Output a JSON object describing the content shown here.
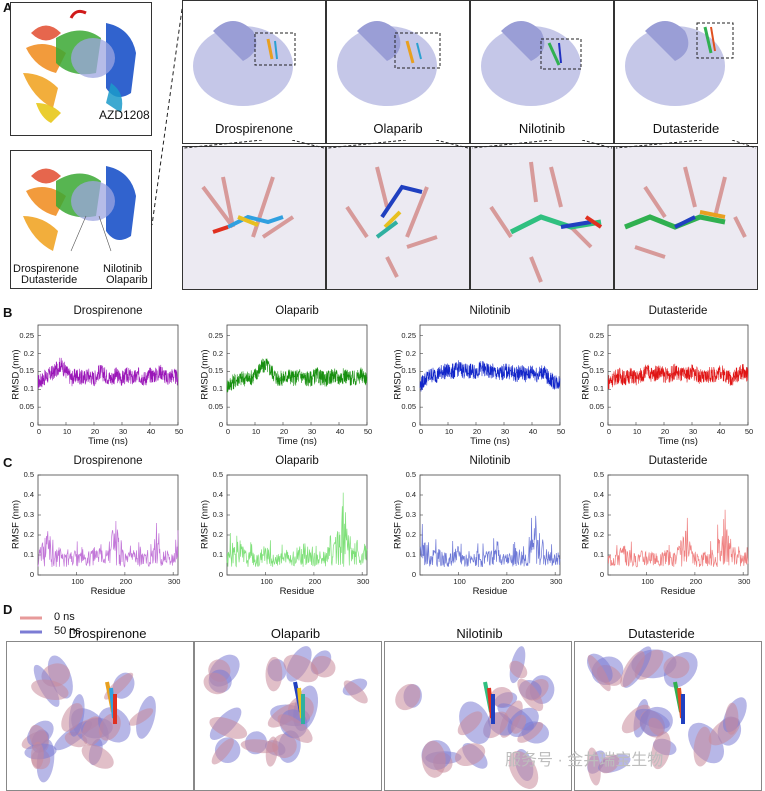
{
  "panels": {
    "A": "A",
    "B": "B",
    "C": "C",
    "D": "D"
  },
  "panelA": {
    "ligand_ref": "AZD1208",
    "overview_labels": {
      "left1": "Drospirenone",
      "left2": "Dutasteride",
      "right1": "Nilotinib",
      "right2": "Olaparib"
    },
    "drugs": [
      "Drospirenone",
      "Olaparib",
      "Nilotinib",
      "Dutasteride"
    ]
  },
  "colors": {
    "drospirenone": "#9a16b8",
    "olaparib": "#17900f",
    "nilotinib": "#1226c9",
    "dutasteride": "#e01515",
    "rmsf_drospirenone": "#c276d8",
    "rmsf_olaparib": "#7fe07a",
    "rmsf_nilotinib": "#6d78d6",
    "rmsf_dutasteride": "#ef8080",
    "legend_0ns": "#e79a9a",
    "legend_50ns": "#7c7cd4",
    "protein": "#a9acd8"
  },
  "panelB": {
    "ylabel": "RMSD (nm)",
    "xlabel": "Time (ns)",
    "yticks": [
      "0",
      "0.05",
      "0.1",
      "0.15",
      "0.2",
      "0.25"
    ],
    "xticks": [
      "0",
      "10",
      "20",
      "30",
      "40",
      "50"
    ]
  },
  "panelC": {
    "ylabel": "RMSF (nm)",
    "xlabel": "Residue",
    "yticks": [
      "0",
      "0.1",
      "0.2",
      "0.3",
      "0.4",
      "0.5"
    ],
    "xticks": [
      "100",
      "200",
      "300"
    ]
  },
  "panelD": {
    "legend": [
      "0 ns",
      "50 ns"
    ]
  },
  "watermark": "服务号 · 金井瑞宝生物",
  "chart_data": [
    {
      "type": "line",
      "title": "Drospirenone",
      "xlabel": "Time (ns)",
      "ylabel": "RMSD (nm)",
      "xlim": [
        0,
        50
      ],
      "ylim": [
        0,
        0.28
      ],
      "series": [
        {
          "name": "Drospirenone",
          "x": [
            0,
            2,
            4,
            6,
            8,
            10,
            12,
            14,
            16,
            18,
            20,
            22,
            24,
            26,
            28,
            30,
            32,
            34,
            36,
            38,
            40,
            42,
            44,
            46,
            48,
            50
          ],
          "values": [
            0.12,
            0.13,
            0.14,
            0.15,
            0.17,
            0.15,
            0.13,
            0.14,
            0.13,
            0.14,
            0.13,
            0.15,
            0.14,
            0.13,
            0.14,
            0.13,
            0.14,
            0.13,
            0.14,
            0.13,
            0.14,
            0.14,
            0.15,
            0.13,
            0.14,
            0.13
          ]
        }
      ]
    },
    {
      "type": "line",
      "title": "Olaparib",
      "xlabel": "Time (ns)",
      "ylabel": "RMSD (nm)",
      "xlim": [
        0,
        50
      ],
      "ylim": [
        0,
        0.28
      ],
      "series": [
        {
          "name": "Olaparib",
          "x": [
            0,
            2,
            4,
            6,
            8,
            10,
            12,
            14,
            16,
            18,
            20,
            22,
            24,
            26,
            28,
            30,
            32,
            34,
            36,
            38,
            40,
            42,
            44,
            46,
            48,
            50
          ],
          "values": [
            0.11,
            0.12,
            0.13,
            0.13,
            0.13,
            0.14,
            0.16,
            0.17,
            0.15,
            0.13,
            0.13,
            0.14,
            0.13,
            0.14,
            0.13,
            0.13,
            0.14,
            0.13,
            0.13,
            0.14,
            0.13,
            0.14,
            0.13,
            0.13,
            0.14,
            0.13
          ]
        }
      ]
    },
    {
      "type": "line",
      "title": "Nilotinib",
      "xlabel": "Time (ns)",
      "ylabel": "RMSD (nm)",
      "xlim": [
        0,
        50
      ],
      "ylim": [
        0,
        0.28
      ],
      "series": [
        {
          "name": "Nilotinib",
          "x": [
            0,
            2,
            4,
            6,
            8,
            10,
            12,
            14,
            16,
            18,
            20,
            22,
            24,
            26,
            28,
            30,
            32,
            34,
            36,
            38,
            40,
            42,
            44,
            46,
            48,
            50
          ],
          "values": [
            0.11,
            0.13,
            0.14,
            0.14,
            0.15,
            0.15,
            0.15,
            0.16,
            0.15,
            0.15,
            0.15,
            0.16,
            0.15,
            0.15,
            0.14,
            0.15,
            0.15,
            0.14,
            0.15,
            0.14,
            0.15,
            0.14,
            0.15,
            0.13,
            0.12,
            0.12
          ]
        }
      ]
    },
    {
      "type": "line",
      "title": "Dutasteride",
      "xlabel": "Time (ns)",
      "ylabel": "RMSD (nm)",
      "xlim": [
        0,
        50
      ],
      "ylim": [
        0,
        0.28
      ],
      "series": [
        {
          "name": "Dutasteride",
          "x": [
            0,
            2,
            4,
            6,
            8,
            10,
            12,
            14,
            16,
            18,
            20,
            22,
            24,
            26,
            28,
            30,
            32,
            34,
            36,
            38,
            40,
            42,
            44,
            46,
            48,
            50
          ],
          "values": [
            0.12,
            0.13,
            0.14,
            0.13,
            0.14,
            0.13,
            0.14,
            0.15,
            0.14,
            0.15,
            0.14,
            0.14,
            0.15,
            0.14,
            0.14,
            0.15,
            0.14,
            0.13,
            0.14,
            0.14,
            0.15,
            0.14,
            0.13,
            0.14,
            0.15,
            0.14
          ]
        }
      ]
    },
    {
      "type": "line",
      "title": "Drospirenone",
      "xlabel": "Residue",
      "ylabel": "RMSF (nm)",
      "xlim": [
        20,
        310
      ],
      "ylim": [
        0,
        0.5
      ],
      "series": [
        {
          "name": "Drospirenone",
          "x": [
            20,
            40,
            60,
            80,
            100,
            120,
            140,
            160,
            180,
            200,
            220,
            240,
            260,
            280,
            300,
            310
          ],
          "values": [
            0.06,
            0.22,
            0.12,
            0.08,
            0.1,
            0.07,
            0.12,
            0.09,
            0.28,
            0.07,
            0.1,
            0.08,
            0.17,
            0.11,
            0.07,
            0.13
          ]
        }
      ]
    },
    {
      "type": "line",
      "title": "Olaparib",
      "xlabel": "Residue",
      "ylabel": "RMSF (nm)",
      "xlim": [
        20,
        310
      ],
      "ylim": [
        0,
        0.5
      ],
      "series": [
        {
          "name": "Olaparib",
          "x": [
            20,
            40,
            60,
            80,
            100,
            120,
            140,
            160,
            180,
            200,
            220,
            240,
            260,
            280,
            300,
            310
          ],
          "values": [
            0.08,
            0.18,
            0.1,
            0.07,
            0.12,
            0.06,
            0.1,
            0.09,
            0.14,
            0.07,
            0.11,
            0.12,
            0.3,
            0.1,
            0.08,
            0.14
          ]
        }
      ]
    },
    {
      "type": "line",
      "title": "Nilotinib",
      "xlabel": "Residue",
      "ylabel": "RMSF (nm)",
      "xlim": [
        20,
        310
      ],
      "ylim": [
        0,
        0.5
      ],
      "series": [
        {
          "name": "Nilotinib",
          "x": [
            20,
            40,
            60,
            80,
            100,
            120,
            140,
            160,
            180,
            200,
            220,
            240,
            260,
            280,
            300,
            310
          ],
          "values": [
            0.2,
            0.13,
            0.1,
            0.07,
            0.12,
            0.06,
            0.09,
            0.08,
            0.15,
            0.06,
            0.12,
            0.09,
            0.24,
            0.11,
            0.07,
            0.11
          ]
        }
      ]
    },
    {
      "type": "line",
      "title": "Dutasteride",
      "xlabel": "Residue",
      "ylabel": "RMSF (nm)",
      "xlim": [
        20,
        310
      ],
      "ylim": [
        0,
        0.5
      ],
      "series": [
        {
          "name": "Dutasteride",
          "x": [
            20,
            40,
            60,
            80,
            100,
            120,
            140,
            160,
            180,
            200,
            220,
            240,
            260,
            280,
            300,
            310
          ],
          "values": [
            0.08,
            0.14,
            0.11,
            0.07,
            0.13,
            0.06,
            0.1,
            0.09,
            0.21,
            0.07,
            0.1,
            0.1,
            0.27,
            0.12,
            0.08,
            0.12
          ]
        }
      ]
    }
  ]
}
